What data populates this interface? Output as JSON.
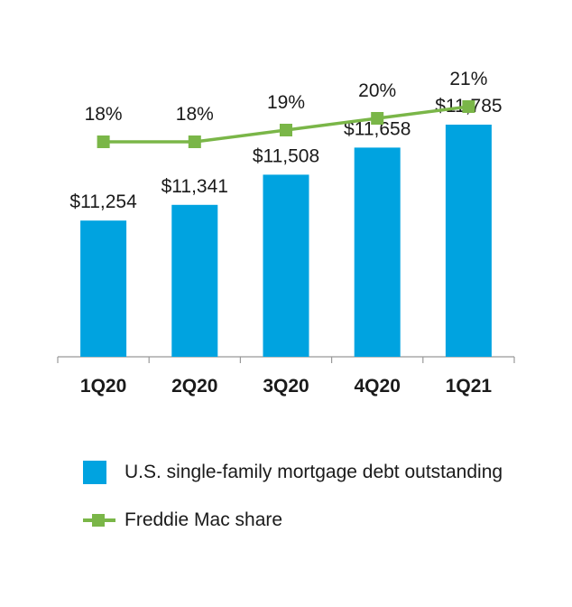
{
  "colors": {
    "bar": "#00a3e0",
    "line": "#7ab648",
    "axis": "#999999",
    "text": "#1a1a1a"
  },
  "chart_data": {
    "type": "bar",
    "categories": [
      "1Q20",
      "2Q20",
      "3Q20",
      "4Q20",
      "1Q21"
    ],
    "series": [
      {
        "name": "U.S. single-family mortgage debt outstanding",
        "type": "bar",
        "values": [
          11254,
          11341,
          11508,
          11658,
          11785
        ],
        "labels": [
          "$11,254",
          "$11,341",
          "$11,508",
          "$11,658",
          "$11,785"
        ]
      },
      {
        "name": "Freddie Mac share",
        "type": "line",
        "values": [
          18,
          18,
          19,
          20,
          21
        ],
        "labels": [
          "18%",
          "18%",
          "19%",
          "20%",
          "21%"
        ]
      }
    ],
    "legend_position": "bottom",
    "grid": false
  }
}
